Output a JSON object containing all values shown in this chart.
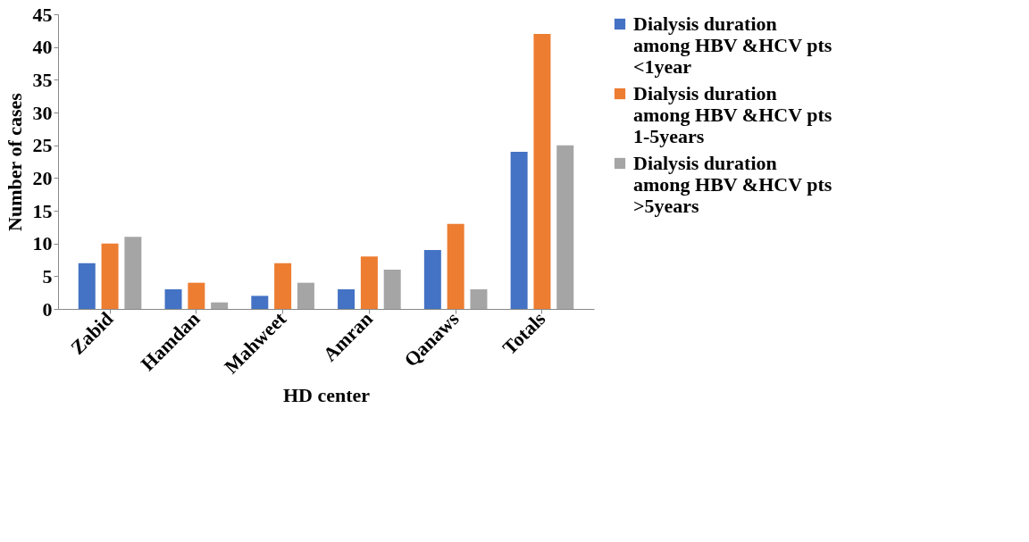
{
  "chart_data": {
    "type": "bar",
    "xlabel": "HD center",
    "ylabel": "Number of cases",
    "categories": [
      "Zabid",
      "Hamdan",
      "Mahweet",
      "Amran",
      "Qanaws",
      "Totals"
    ],
    "series": [
      {
        "name": "Dialysis duration among HBV &HCV pts <1year",
        "color": "#4472c4",
        "values": [
          7,
          3,
          2,
          3,
          9,
          24
        ]
      },
      {
        "name": "Dialysis duration among HBV &HCV pts 1-5years",
        "color": "#ed7d31",
        "values": [
          10,
          4,
          7,
          8,
          13,
          42
        ]
      },
      {
        "name": "Dialysis duration among HBV &HCV pts >5years",
        "color": "#a5a5a5",
        "values": [
          11,
          1,
          4,
          6,
          3,
          25
        ]
      }
    ],
    "ylim": [
      0,
      45
    ],
    "yticks": [
      0,
      5,
      10,
      15,
      20,
      25,
      30,
      35,
      40,
      45
    ],
    "grid": false,
    "legend": "right"
  }
}
